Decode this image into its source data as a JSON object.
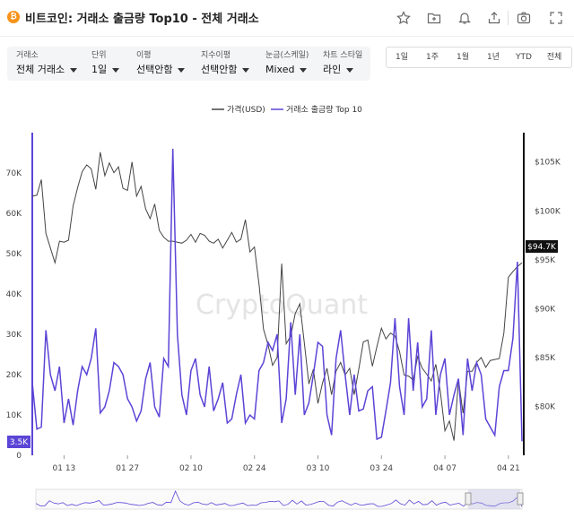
{
  "header": {
    "coin_icon": "bitcoin-icon",
    "title": "비트코인: 거래소 출금량 Top10 - 전체 거래소",
    "tools": [
      "star-icon",
      "folder-add-icon",
      "bell-icon",
      "share-icon",
      "camera-icon",
      "expand-icon"
    ]
  },
  "controls": [
    {
      "label": "거래소",
      "value": "전체 거래소"
    },
    {
      "label": "단위",
      "value": "1일"
    },
    {
      "label": "이평",
      "value": "선택안함"
    },
    {
      "label": "지수이평",
      "value": "선택안함"
    },
    {
      "label": "눈금(스케일)",
      "value": "Mixed"
    },
    {
      "label": "차트 스타일",
      "value": "라인"
    }
  ],
  "ranges": [
    "1일",
    "1주",
    "1월",
    "1년",
    "YTD",
    "전체"
  ],
  "colors": {
    "price": "#444444",
    "flow": "#5b45d6",
    "axis_left": "#5b45d6",
    "axis_right": "#111111"
  },
  "chart_data": {
    "type": "line",
    "watermark": "CryptoQuant",
    "legend_position": "top-center",
    "x": [
      "01-06",
      "01-07",
      "01-08",
      "01-09",
      "01-10",
      "01-11",
      "01-12",
      "01-13",
      "01-14",
      "01-15",
      "01-16",
      "01-17",
      "01-18",
      "01-19",
      "01-20",
      "01-21",
      "01-22",
      "01-23",
      "01-24",
      "01-25",
      "01-26",
      "01-27",
      "01-28",
      "01-29",
      "01-30",
      "01-31",
      "02-01",
      "02-02",
      "02-03",
      "02-04",
      "02-05",
      "02-06",
      "02-07",
      "02-08",
      "02-09",
      "02-10",
      "02-11",
      "02-12",
      "02-13",
      "02-14",
      "02-15",
      "02-16",
      "02-17",
      "02-18",
      "02-19",
      "02-20",
      "02-21",
      "02-22",
      "02-23",
      "02-24",
      "02-25",
      "02-26",
      "02-27",
      "02-28",
      "03-01",
      "03-02",
      "03-03",
      "03-04",
      "03-05",
      "03-06",
      "03-07",
      "03-08",
      "03-09",
      "03-10",
      "03-11",
      "03-12",
      "03-13",
      "03-14",
      "03-15",
      "03-16",
      "03-17",
      "03-18",
      "03-19",
      "03-20",
      "03-21",
      "03-22",
      "03-23",
      "03-24",
      "03-25",
      "03-26",
      "03-27",
      "03-28",
      "03-29",
      "03-30",
      "03-31",
      "04-01",
      "04-02",
      "04-03",
      "04-04",
      "04-05",
      "04-06",
      "04-07",
      "04-08",
      "04-09",
      "04-10",
      "04-11",
      "04-12",
      "04-13",
      "04-14",
      "04-15",
      "04-16",
      "04-17",
      "04-18",
      "04-19",
      "04-20",
      "04-21",
      "04-22",
      "04-23",
      "04-24"
    ],
    "x_ticks": [
      "01 13",
      "01 27",
      "02 10",
      "02 24",
      "03 10",
      "03 24",
      "04 07",
      "04 21"
    ],
    "y_left_ticks": [
      "0",
      "10K",
      "20K",
      "30K",
      "40K",
      "50K",
      "60K",
      "70K"
    ],
    "y_left_lim": [
      0,
      80000
    ],
    "y_right_ticks": [
      "$80K",
      "$85K",
      "$90K",
      "$95K",
      "$100K",
      "$105K"
    ],
    "y_right_lim": [
      75000,
      108000
    ],
    "last_value_labels": {
      "flow": "3.5K",
      "price": "$94.7K"
    },
    "series": [
      {
        "name": "가격(USD)",
        "axis": "right",
        "values": [
          101500,
          101600,
          103200,
          97700,
          96200,
          94700,
          96900,
          96800,
          97000,
          100500,
          102400,
          104000,
          104700,
          104300,
          102200,
          106000,
          103600,
          104900,
          103900,
          104500,
          102300,
          102100,
          105000,
          101500,
          102500,
          100200,
          99200,
          100700,
          98000,
          97300,
          96900,
          96900,
          96800,
          96700,
          97000,
          97600,
          96800,
          97700,
          97500,
          96900,
          96700,
          97100,
          96200,
          97000,
          97800,
          96800,
          97100,
          99100,
          95800,
          96300,
          92500,
          87900,
          86300,
          84200,
          85000,
          94600,
          86400,
          87200,
          89500,
          90500,
          86500,
          82300,
          83800,
          80300,
          82400,
          83900,
          81200,
          83600,
          84500,
          83200,
          83900,
          81200,
          83800,
          86600,
          86800,
          84100,
          86100,
          88000,
          86900,
          87500,
          87200,
          85600,
          83200,
          83100,
          82700,
          85100,
          83900,
          83300,
          82600,
          84300,
          81500,
          77500,
          78500,
          76500,
          82700,
          79300,
          83600,
          83600,
          84500,
          85000,
          84000,
          84700,
          84800,
          84900,
          87500,
          93200,
          93800,
          94300,
          94700
        ]
      },
      {
        "name": "거래소 출금량 Top 10",
        "axis": "left",
        "values": [
          18000,
          6500,
          7000,
          31000,
          20000,
          16000,
          22000,
          8000,
          14000,
          7500,
          16000,
          22000,
          20000,
          24000,
          31500,
          10500,
          12000,
          16000,
          23000,
          22000,
          20000,
          14000,
          12000,
          8500,
          11000,
          19000,
          23000,
          12000,
          9500,
          24000,
          22000,
          76000,
          30000,
          15000,
          10000,
          21000,
          24000,
          15000,
          12000,
          22000,
          11000,
          14000,
          18000,
          8000,
          9000,
          15000,
          20000,
          8000,
          10000,
          9000,
          21000,
          23000,
          28000,
          26000,
          30000,
          8000,
          14000,
          33000,
          15000,
          30000,
          10000,
          13000,
          20000,
          28000,
          27000,
          10000,
          5000,
          24000,
          31000,
          20000,
          10000,
          20000,
          11000,
          11500,
          16000,
          17000,
          4000,
          4500,
          11000,
          18000,
          34000,
          17000,
          10000,
          34000,
          16000,
          28000,
          12000,
          14000,
          31000,
          10000,
          20000,
          24000,
          10000,
          15000,
          19000,
          5000,
          24000,
          16000,
          23000,
          20000,
          9000,
          7000,
          5000,
          17000,
          21000,
          21000,
          29000,
          48000,
          3500
        ]
      }
    ]
  }
}
